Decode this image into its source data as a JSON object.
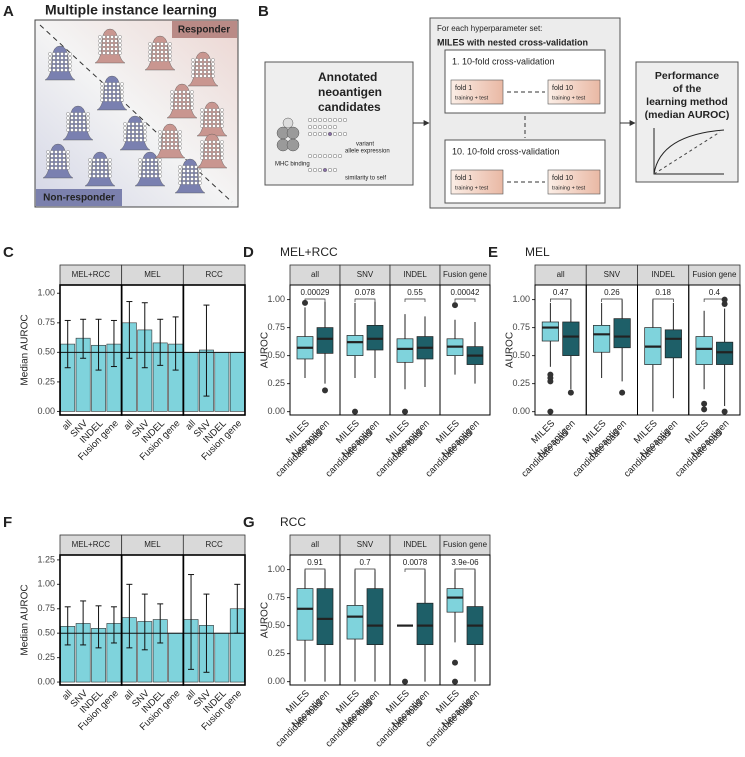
{
  "diagram_a": {
    "label": "A",
    "title": "Multiple instance learning",
    "responder": "Responder",
    "non_responder": "Non-responder"
  },
  "diagram_b": {
    "label": "B",
    "input_title": [
      "Annotated",
      "neoantigen",
      "candidates"
    ],
    "features": [
      "MHC binding",
      "variant",
      "allele expression",
      "similarity to self"
    ],
    "loop_header": "For each hyperparameter set:",
    "loop_title": "MILES with nested cross-validation",
    "cv_blocks": [
      {
        "title": "1. 10-fold cross-validation",
        "folds": [
          {
            "name": "fold 1",
            "detail": "training + test"
          },
          {
            "name": "fold 10",
            "detail": "training + test"
          }
        ]
      },
      {
        "title": "10. 10-fold cross-validation",
        "folds": [
          {
            "name": "fold 1",
            "detail": "training + test"
          },
          {
            "name": "fold 10",
            "detail": "training + test"
          }
        ]
      }
    ],
    "output_title": [
      "Performance",
      "of the",
      "learning method",
      "(median AUROC)"
    ]
  },
  "chart_data": [
    {
      "type": "bar",
      "label": "C",
      "y_label": "Median AUROC",
      "color": "#7fd3dc",
      "categories": [
        "all",
        "SNV",
        "INDEL",
        "Fusion gene"
      ],
      "ylim": [
        -0.03,
        1.07
      ],
      "yticks": [
        {
          "value": 0,
          "label": "0.00"
        },
        {
          "value": 0.25,
          "label": "0.25"
        },
        {
          "value": 0.5,
          "label": "0.50"
        },
        {
          "value": 0.75,
          "label": "0.75"
        },
        {
          "value": 1,
          "label": "1.00"
        }
      ],
      "reference_line": 0.5,
      "facets": [
        {
          "name": "MEL+RCC",
          "values": [
            0.57,
            0.62,
            0.56,
            0.57
          ],
          "lower": [
            0.37,
            0.45,
            0.35,
            0.38
          ],
          "upper": [
            0.77,
            0.78,
            0.78,
            0.77
          ]
        },
        {
          "name": "MEL",
          "values": [
            0.75,
            0.69,
            0.58,
            0.57
          ],
          "lower": [
            0.45,
            0.37,
            0.39,
            0.35
          ],
          "upper": [
            0.93,
            0.92,
            0.78,
            0.8
          ]
        },
        {
          "name": "RCC",
          "values": [
            0.5,
            0.52,
            0.5,
            0.5
          ],
          "lower": [
            null,
            0.13,
            null,
            null
          ],
          "upper": [
            null,
            0.9,
            null,
            null
          ]
        }
      ]
    },
    {
      "type": "box",
      "label": "D",
      "title": "MEL+RCC",
      "y_label": "AUROC",
      "groups": [
        {
          "name_lines": [
            "MILES"
          ],
          "color": "#7fd3dc"
        },
        {
          "name_lines": [
            "Neoantigen",
            "candidate load"
          ],
          "color": "#1e5f68"
        }
      ],
      "ylim": [
        -0.03,
        1.13
      ],
      "yticks": [
        {
          "value": 0,
          "label": "0.00"
        },
        {
          "value": 0.25,
          "label": "0.25"
        },
        {
          "value": 0.5,
          "label": "0.50"
        },
        {
          "value": 0.75,
          "label": "0.75"
        },
        {
          "value": 1,
          "label": "1.00"
        }
      ],
      "facets": [
        {
          "name": "all",
          "p_value": "0.00029",
          "boxes": [
            {
              "whisker_low": 0.3,
              "q1": 0.47,
              "median": 0.57,
              "q3": 0.67,
              "whisker_high": 0.93,
              "outliers": [
                0.97
              ]
            },
            {
              "whisker_low": 0.25,
              "q1": 0.52,
              "median": 0.65,
              "q3": 0.75,
              "whisker_high": 0.98,
              "outliers": [
                0.19
              ]
            }
          ]
        },
        {
          "name": "SNV",
          "p_value": "0.078",
          "boxes": [
            {
              "whisker_low": 0.3,
              "q1": 0.5,
              "median": 0.62,
              "q3": 0.68,
              "whisker_high": 0.97,
              "outliers": [
                0
              ]
            },
            {
              "whisker_low": 0.3,
              "q1": 0.55,
              "median": 0.65,
              "q3": 0.77,
              "whisker_high": 0.98,
              "outliers": []
            }
          ]
        },
        {
          "name": "INDEL",
          "p_value": "0.55",
          "boxes": [
            {
              "whisker_low": 0.2,
              "q1": 0.44,
              "median": 0.56,
              "q3": 0.65,
              "whisker_high": 0.87,
              "outliers": [
                0
              ]
            },
            {
              "whisker_low": 0.22,
              "q1": 0.47,
              "median": 0.57,
              "q3": 0.67,
              "whisker_high": 0.85,
              "outliers": []
            }
          ]
        },
        {
          "name": "Fusion gene",
          "p_value": "0.00042",
          "boxes": [
            {
              "whisker_low": 0.33,
              "q1": 0.5,
              "median": 0.58,
              "q3": 0.65,
              "whisker_high": 0.82,
              "outliers": [
                0.95
              ]
            },
            {
              "whisker_low": 0.25,
              "q1": 0.42,
              "median": 0.5,
              "q3": 0.58,
              "whisker_high": 0.8,
              "outliers": []
            }
          ]
        }
      ]
    },
    {
      "type": "box",
      "label": "E",
      "title": "MEL",
      "y_label": "AUROC",
      "groups": [
        {
          "name_lines": [
            "MILES"
          ],
          "color": "#7fd3dc"
        },
        {
          "name_lines": [
            "Neoantigen",
            "candidate load"
          ],
          "color": "#1e5f68"
        }
      ],
      "ylim": [
        -0.03,
        1.13
      ],
      "yticks": [
        {
          "value": 0,
          "label": "0.00"
        },
        {
          "value": 0.25,
          "label": "0.25"
        },
        {
          "value": 0.5,
          "label": "0.50"
        },
        {
          "value": 0.75,
          "label": "0.75"
        },
        {
          "value": 1,
          "label": "1.00"
        }
      ],
      "facets": [
        {
          "name": "all",
          "p_value": "0.47",
          "boxes": [
            {
              "whisker_low": 0.4,
              "q1": 0.63,
              "median": 0.75,
              "q3": 0.8,
              "whisker_high": 0.97,
              "outliers": [
                0.33,
                0.3,
                0.27,
                0
              ]
            },
            {
              "whisker_low": 0.2,
              "q1": 0.5,
              "median": 0.67,
              "q3": 0.8,
              "whisker_high": 1,
              "outliers": [
                0.17
              ]
            }
          ]
        },
        {
          "name": "SNV",
          "p_value": "0.26",
          "boxes": [
            {
              "whisker_low": 0.3,
              "q1": 0.53,
              "median": 0.69,
              "q3": 0.77,
              "whisker_high": 0.97,
              "outliers": []
            },
            {
              "whisker_low": 0.27,
              "q1": 0.57,
              "median": 0.67,
              "q3": 0.83,
              "whisker_high": 1,
              "outliers": [
                0.17
              ]
            }
          ]
        },
        {
          "name": "INDEL",
          "p_value": "0.18",
          "boxes": [
            {
              "whisker_low": 0,
              "q1": 0.42,
              "median": 0.58,
              "q3": 0.75,
              "whisker_high": 1,
              "outliers": []
            },
            {
              "whisker_low": 0.12,
              "q1": 0.48,
              "median": 0.65,
              "q3": 0.73,
              "whisker_high": 0.97,
              "outliers": []
            }
          ]
        },
        {
          "name": "Fusion gene",
          "p_value": "0.4",
          "boxes": [
            {
              "whisker_low": 0.2,
              "q1": 0.42,
              "median": 0.56,
              "q3": 0.67,
              "whisker_high": 0.9,
              "outliers": [
                0.07,
                0.02
              ]
            },
            {
              "whisker_low": 0.05,
              "q1": 0.42,
              "median": 0.53,
              "q3": 0.62,
              "whisker_high": 0.92,
              "outliers": [
                1,
                0.96,
                0
              ]
            }
          ]
        }
      ]
    },
    {
      "type": "bar",
      "label": "F",
      "y_label": "Median AUROC",
      "color": "#7fd3dc",
      "categories": [
        "all",
        "SNV",
        "INDEL",
        "Fusion gene"
      ],
      "ylim": [
        -0.03,
        1.3
      ],
      "yticks": [
        {
          "value": 0,
          "label": "0.00"
        },
        {
          "value": 0.25,
          "label": "0.25"
        },
        {
          "value": 0.5,
          "label": "0.50"
        },
        {
          "value": 0.75,
          "label": "0.75"
        },
        {
          "value": 1,
          "label": "1.00"
        },
        {
          "value": 1.25,
          "label": "1.25"
        }
      ],
      "reference_line": 0.5,
      "facets": [
        {
          "name": "MEL+RCC",
          "values": [
            0.57,
            0.6,
            0.55,
            0.6
          ],
          "lower": [
            0.38,
            0.38,
            0.35,
            0.4
          ],
          "upper": [
            0.77,
            0.83,
            0.78,
            0.77
          ]
        },
        {
          "name": "MEL",
          "values": [
            0.66,
            0.62,
            0.64,
            0.5
          ],
          "lower": [
            0.35,
            0.33,
            0.4,
            null
          ],
          "upper": [
            1,
            0.9,
            0.8,
            null
          ]
        },
        {
          "name": "RCC",
          "values": [
            0.64,
            0.58,
            0.5,
            0.75
          ],
          "lower": [
            0.13,
            0.1,
            null,
            0.5
          ],
          "upper": [
            1.1,
            0.9,
            null,
            1
          ]
        }
      ]
    },
    {
      "type": "box",
      "label": "G",
      "title": "RCC",
      "y_label": "AUROC",
      "groups": [
        {
          "name_lines": [
            "MILES"
          ],
          "color": "#7fd3dc"
        },
        {
          "name_lines": [
            "Neoantigen",
            "candidate load"
          ],
          "color": "#1e5f68"
        }
      ],
      "ylim": [
        -0.03,
        1.13
      ],
      "yticks": [
        {
          "value": 0,
          "label": "0.00"
        },
        {
          "value": 0.25,
          "label": "0.25"
        },
        {
          "value": 0.5,
          "label": "0.50"
        },
        {
          "value": 0.75,
          "label": "0.75"
        },
        {
          "value": 1,
          "label": "1.00"
        }
      ],
      "facets": [
        {
          "name": "all",
          "p_value": "0.91",
          "boxes": [
            {
              "whisker_low": 0,
              "q1": 0.37,
              "median": 0.65,
              "q3": 0.83,
              "whisker_high": 1,
              "outliers": []
            },
            {
              "whisker_low": 0,
              "q1": 0.33,
              "median": 0.56,
              "q3": 0.83,
              "whisker_high": 1,
              "outliers": []
            }
          ]
        },
        {
          "name": "SNV",
          "p_value": "0.7",
          "boxes": [
            {
              "whisker_low": 0,
              "q1": 0.38,
              "median": 0.58,
              "q3": 0.68,
              "whisker_high": 1,
              "outliers": []
            },
            {
              "whisker_low": 0,
              "q1": 0.33,
              "median": 0.5,
              "q3": 0.83,
              "whisker_high": 1,
              "outliers": []
            }
          ]
        },
        {
          "name": "INDEL",
          "p_value": "0.0078",
          "boxes": [
            {
              "whisker_low": 0.5,
              "q1": 0.5,
              "median": 0.5,
              "q3": 0.5,
              "whisker_high": 0.5,
              "outliers": [
                0
              ]
            },
            {
              "whisker_low": 0,
              "q1": 0.33,
              "median": 0.5,
              "q3": 0.7,
              "whisker_high": 1,
              "outliers": []
            }
          ]
        },
        {
          "name": "Fusion gene",
          "p_value": "3.9e-06",
          "boxes": [
            {
              "whisker_low": 0.35,
              "q1": 0.62,
              "median": 0.75,
              "q3": 0.83,
              "whisker_high": 1,
              "outliers": [
                0.17,
                0
              ]
            },
            {
              "whisker_low": 0,
              "q1": 0.33,
              "median": 0.5,
              "q3": 0.67,
              "whisker_high": 1,
              "outliers": []
            }
          ]
        }
      ]
    }
  ]
}
